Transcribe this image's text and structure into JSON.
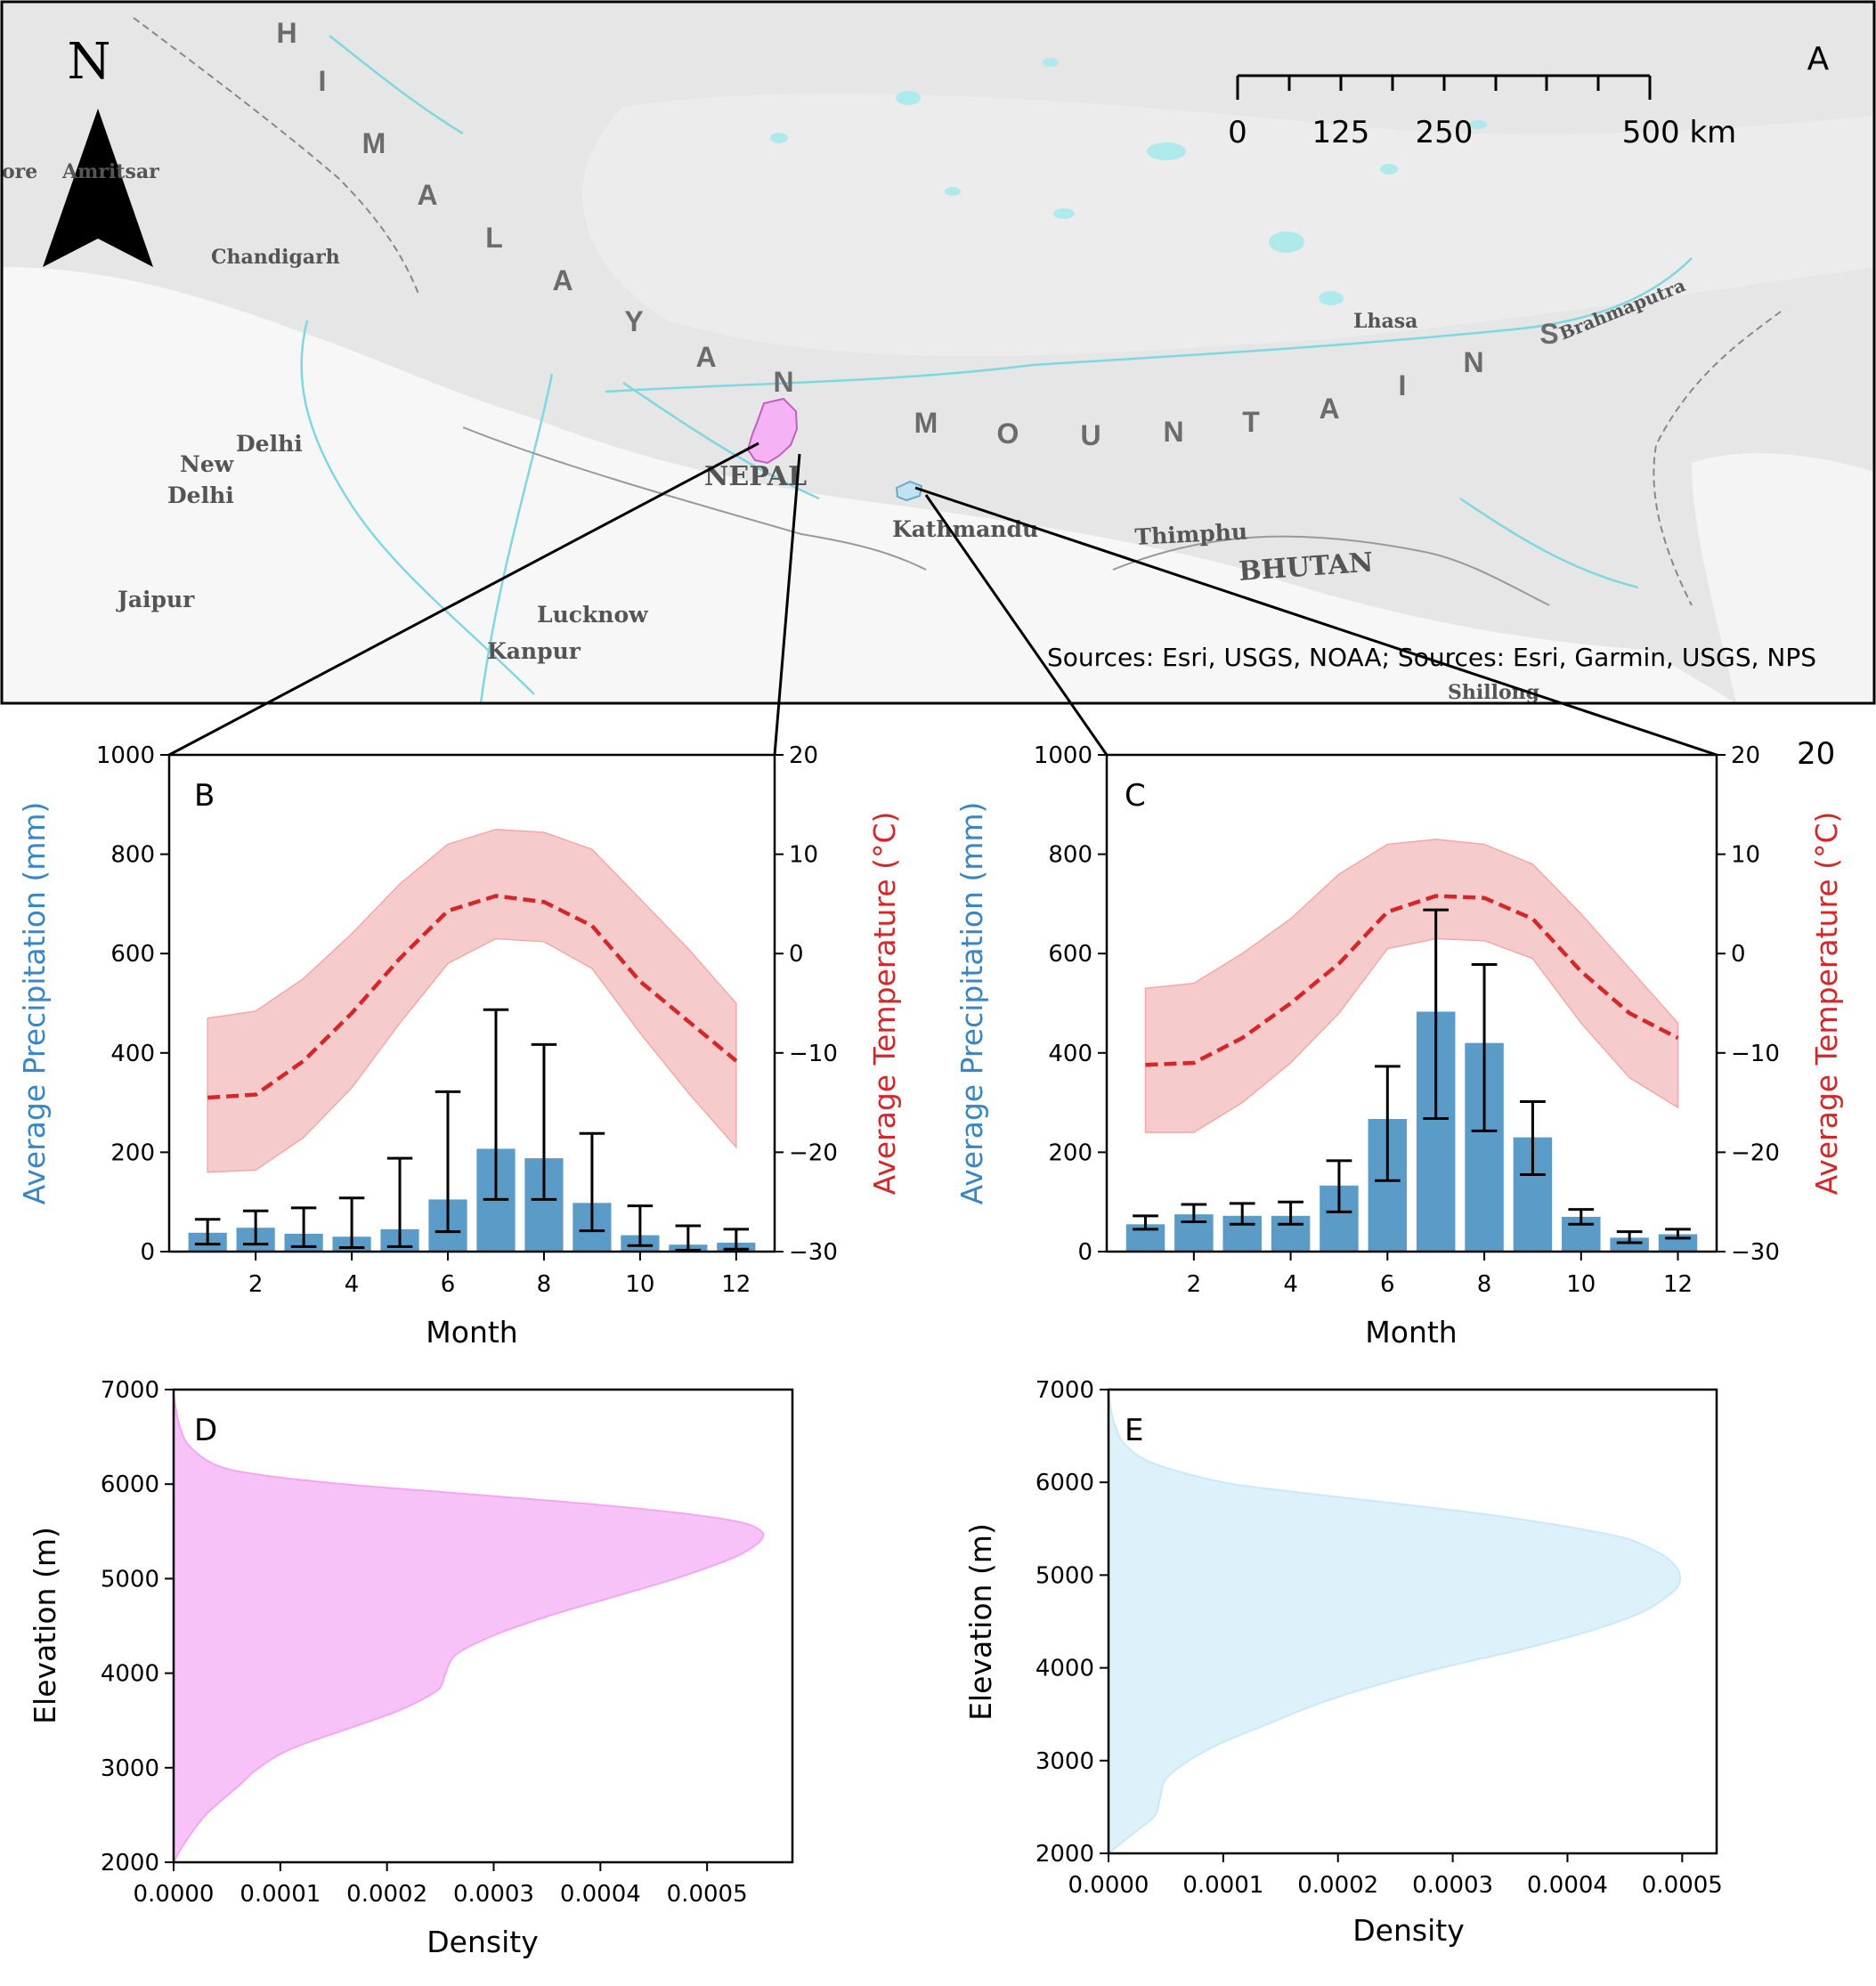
{
  "map": {
    "panel_label": "A",
    "north_label": "N",
    "scale_labels": [
      "0",
      "125",
      "250",
      "500 km"
    ],
    "sources": "Sources: Esri, USGS, NOAA; Sources: Esri, Garmin, USGS, NPS",
    "range_letters": [
      "H",
      "I",
      "M",
      "A",
      "L",
      "A",
      "Y",
      "A",
      "N",
      "M",
      "O",
      "U",
      "N",
      "T",
      "A",
      "I",
      "N",
      "S"
    ],
    "places": {
      "lahore": "ore",
      "amritsar": "Amritsar",
      "chandigarh": "Chandigarh",
      "delhi": "Delhi",
      "new_delhi_1": "New",
      "new_delhi_2": "Delhi",
      "jaipur": "Jaipur",
      "lucknow": "Lucknow",
      "kanpur": "Kanpur",
      "nepal": "NEPAL",
      "kathmandu": "Kathmandu",
      "thimphu": "Thimphu",
      "bhutan": "BHUTAN",
      "lhasa": "Lhasa",
      "brahmaputra": "Brahmaputra",
      "shillong": "Shillong"
    },
    "colors": {
      "land": "#e4e4e4",
      "lowland": "#f7f7f7",
      "water": "#7fd8e0",
      "region_b": "#f5b2f5",
      "region_c": "#bfe3f5"
    }
  },
  "chart_data": [
    {
      "panel": "B",
      "type": "bar",
      "xlabel": "Month",
      "ylabel": "Average Precipitation (mm)",
      "ylabel2": "Average Temperature (°C)",
      "x": [
        1,
        2,
        3,
        4,
        5,
        6,
        7,
        8,
        9,
        10,
        11,
        12
      ],
      "xticks": [
        2,
        4,
        6,
        8,
        10,
        12
      ],
      "ylim": [
        0,
        1000
      ],
      "yticks": [
        0,
        200,
        400,
        600,
        800,
        1000
      ],
      "y2lim": [
        -30,
        20
      ],
      "y2ticks": [
        -30,
        -20,
        -10,
        0,
        10,
        20
      ],
      "y2ticklabels": [
        "−30",
        "−20",
        "−10",
        "0",
        "10",
        "20"
      ],
      "precip": [
        38,
        48,
        36,
        30,
        45,
        105,
        207,
        188,
        98,
        33,
        14,
        18
      ],
      "precip_low": [
        15,
        15,
        10,
        8,
        10,
        40,
        105,
        105,
        42,
        12,
        3,
        5
      ],
      "precip_high": [
        65,
        82,
        88,
        108,
        188,
        322,
        487,
        417,
        238,
        92,
        52,
        45
      ],
      "temp_mean": [
        -14.5,
        -14.2,
        -10.8,
        -6.0,
        -0.5,
        4.3,
        5.8,
        5.2,
        2.8,
        -2.8,
        -6.8,
        -10.8
      ],
      "temp_low": [
        -22.0,
        -21.8,
        -18.5,
        -13.5,
        -7.0,
        -1.0,
        1.5,
        1.2,
        -1.5,
        -8.0,
        -14.0,
        -19.5
      ],
      "temp_high": [
        -6.5,
        -5.8,
        -2.5,
        2.0,
        7.0,
        11.0,
        12.5,
        12.2,
        10.5,
        5.5,
        0.5,
        -5.0
      ],
      "colors": {
        "bar": "#5b9bc8",
        "temp_line": "#d62728",
        "temp_band": "#f5c6c6",
        "ylabel": "#3a86c2",
        "ylabel2": "#d62728"
      }
    },
    {
      "panel": "C",
      "type": "bar",
      "xlabel": "Month",
      "ylabel": "Average Precipitation (mm)",
      "ylabel2": "Average Temperature (°C)",
      "extra_label": "20",
      "x": [
        1,
        2,
        3,
        4,
        5,
        6,
        7,
        8,
        9,
        10,
        11,
        12
      ],
      "xticks": [
        2,
        4,
        6,
        8,
        10,
        12
      ],
      "ylim": [
        0,
        1000
      ],
      "yticks": [
        0,
        200,
        400,
        600,
        800,
        1000
      ],
      "y2lim": [
        -30,
        20
      ],
      "y2ticks": [
        -30,
        -20,
        -10,
        0,
        10,
        20
      ],
      "y2ticklabels": [
        "−30",
        "−20",
        "−10",
        "0",
        "10",
        "20"
      ],
      "precip": [
        55,
        75,
        72,
        72,
        133,
        267,
        483,
        420,
        230,
        70,
        28,
        35
      ],
      "precip_low": [
        45,
        60,
        55,
        55,
        80,
        143,
        268,
        243,
        155,
        55,
        18,
        27
      ],
      "precip_high": [
        72,
        95,
        97,
        100,
        183,
        373,
        688,
        578,
        302,
        85,
        40,
        45
      ],
      "temp_mean": [
        -11.2,
        -11.0,
        -8.5,
        -5.0,
        -1.0,
        4.2,
        5.8,
        5.6,
        3.5,
        -1.8,
        -6.0,
        -8.5
      ],
      "temp_low": [
        -18.0,
        -18.0,
        -15.0,
        -11.0,
        -6.0,
        0.5,
        1.5,
        1.3,
        -0.5,
        -7.0,
        -12.5,
        -15.5
      ],
      "temp_high": [
        -3.5,
        -3.0,
        0.0,
        3.5,
        8.0,
        11.0,
        11.5,
        11.0,
        9.0,
        4.0,
        -1.5,
        -7.0
      ],
      "colors": {
        "bar": "#5b9bc8",
        "temp_line": "#d62728",
        "temp_band": "#f5c6c6",
        "ylabel": "#3a86c2",
        "ylabel2": "#d62728"
      }
    },
    {
      "panel": "D",
      "type": "area",
      "xlabel": "Density",
      "ylabel": "Elevation (m)",
      "xlim": [
        0,
        0.00058
      ],
      "xticks": [
        0,
        0.0001,
        0.0002,
        0.0003,
        0.0004,
        0.0005
      ],
      "xticklabels": [
        "0.0000",
        "0.0001",
        "0.0002",
        "0.0003",
        "0.0004",
        "0.0005"
      ],
      "ylim": [
        2000,
        7000
      ],
      "yticks": [
        2000,
        3000,
        4000,
        5000,
        6000,
        7000
      ],
      "elevation": [
        2000,
        2200,
        2500,
        2800,
        3000,
        3200,
        3400,
        3600,
        3800,
        3900,
        4000,
        4200,
        4400,
        4600,
        4800,
        5000,
        5200,
        5300,
        5400,
        5500,
        5600,
        5700,
        5800,
        5900,
        6000,
        6100,
        6200,
        6400,
        6600,
        6800,
        6950
      ],
      "density": [
        0,
        1e-05,
        3e-05,
        6e-05,
        8e-05,
        0.00011,
        0.00016,
        0.00021,
        0.000245,
        0.000252,
        0.000255,
        0.000265,
        0.0003,
        0.00035,
        0.00041,
        0.00047,
        0.00052,
        0.000538,
        0.00055,
        0.000551,
        0.00053,
        0.00047,
        0.00038,
        0.00027,
        0.00016,
        8e-05,
        4e-05,
        1.5e-05,
        6e-06,
        2e-06,
        0
      ],
      "colors": {
        "fill": "#f7c2f7",
        "edge": "#f5a6f0"
      }
    },
    {
      "panel": "E",
      "type": "area",
      "xlabel": "Density",
      "ylabel": "Elevation (m)",
      "xlim": [
        0,
        0.00053
      ],
      "xticks": [
        0,
        0.0001,
        0.0002,
        0.0003,
        0.0004,
        0.0005
      ],
      "xticklabels": [
        "0.0000",
        "0.0001",
        "0.0002",
        "0.0003",
        "0.0004",
        "0.0005"
      ],
      "ylim": [
        2000,
        7000
      ],
      "yticks": [
        2000,
        3000,
        4000,
        5000,
        6000,
        7000
      ],
      "elevation": [
        2000,
        2200,
        2400,
        2600,
        2800,
        3000,
        3200,
        3400,
        3600,
        3800,
        4000,
        4200,
        4400,
        4600,
        4800,
        4900,
        5000,
        5100,
        5200,
        5300,
        5400,
        5500,
        5600,
        5700,
        5800,
        5900,
        6000,
        6200,
        6400,
        6600,
        6800,
        7000
      ],
      "density": [
        0,
        2e-05,
        4e-05,
        4.5e-05,
        5e-05,
        7e-05,
        0.0001,
        0.00014,
        0.00018,
        0.00023,
        0.00029,
        0.00036,
        0.00042,
        0.000465,
        0.00049,
        0.000497,
        0.000498,
        0.000494,
        0.000485,
        0.00047,
        0.00045,
        0.00041,
        0.00036,
        0.0003,
        0.00023,
        0.00016,
        0.0001,
        4e-05,
        1.5e-05,
        6e-06,
        2e-06,
        0
      ],
      "colors": {
        "fill": "#ddf1fa",
        "edge": "#c9e9f7"
      }
    }
  ]
}
